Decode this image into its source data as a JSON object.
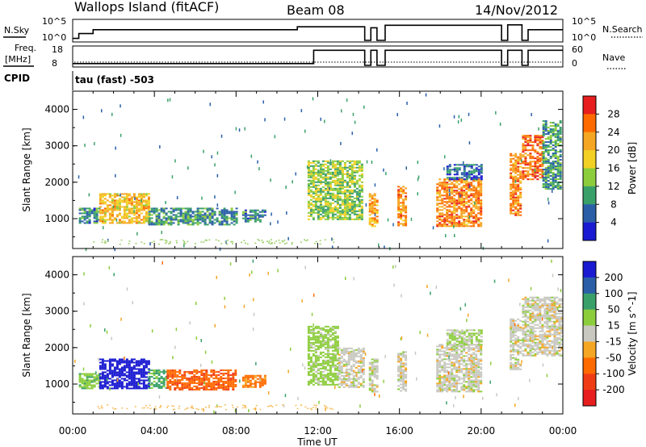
{
  "header": {
    "site": "Wallops Island (fitACF)",
    "beam": "Beam 08",
    "date": "14/Nov/2012"
  },
  "panels": {
    "nsky_label": "N.Sky",
    "nsky_ticks": [
      "10^5",
      "10^0"
    ],
    "nsearch_label": "N.Search",
    "nsearch_ticks": [
      "10^5",
      "10^0"
    ],
    "freq_label": "Freq.",
    "freq_unit": "[MHz]",
    "freq_ticks": [
      "18",
      "8"
    ],
    "nave_label": "Nave",
    "nave_ticks": [
      "60",
      "0"
    ],
    "cpid_label": "CPID",
    "cpid_value": "tau (fast) -503"
  },
  "chart_data": [
    {
      "type": "heatmap",
      "name": "power",
      "ylabel": "Slant Range [km]",
      "ylim": [
        180,
        4500
      ],
      "yticks": [
        1000,
        2000,
        3000,
        4000
      ],
      "xlabel": "Time UT",
      "xlim": [
        "00:00",
        "24:00"
      ],
      "xticks": [
        "00:00",
        "04:00",
        "08:00",
        "12:00",
        "16:00",
        "20:00",
        "00:00"
      ],
      "colorbar": {
        "label": "Power [dB]",
        "ticks": [
          "28",
          "24",
          "20",
          "16",
          "12",
          "8",
          "4"
        ],
        "colors": [
          "#e61e1e",
          "#ff6a00",
          "#f5a623",
          "#f2d024",
          "#8ccd3c",
          "#3aa06a",
          "#2a5fa8",
          "#1a1ad2"
        ]
      },
      "regions": [
        {
          "t0": 0.3,
          "t1": 1.3,
          "r0": 900,
          "r1": 1300,
          "value": 8
        },
        {
          "t0": 1.3,
          "t1": 3.7,
          "r0": 900,
          "r1": 1700,
          "value": 20
        },
        {
          "t0": 3.7,
          "t1": 8.0,
          "r0": 850,
          "r1": 1300,
          "value": 9
        },
        {
          "t0": 8.3,
          "t1": 9.4,
          "r0": 900,
          "r1": 1250,
          "value": 8
        },
        {
          "t0": 11.5,
          "t1": 14.2,
          "r0": 1000,
          "r1": 2600,
          "value": 14
        },
        {
          "t0": 14.5,
          "t1": 14.9,
          "r0": 800,
          "r1": 1700,
          "value": 22
        },
        {
          "t0": 15.9,
          "t1": 16.3,
          "r0": 800,
          "r1": 1900,
          "value": 24
        },
        {
          "t0": 17.8,
          "t1": 20.0,
          "r0": 800,
          "r1": 2100,
          "value": 24
        },
        {
          "t0": 18.3,
          "t1": 20.0,
          "r0": 2100,
          "r1": 2500,
          "value": 7
        },
        {
          "t0": 21.4,
          "t1": 21.9,
          "r0": 1100,
          "r1": 2800,
          "value": 24
        },
        {
          "t0": 22.0,
          "t1": 23.0,
          "r0": 2100,
          "r1": 3300,
          "value": 26
        },
        {
          "t0": 23.0,
          "t1": 23.9,
          "r0": 1800,
          "r1": 3700,
          "value": 10
        }
      ]
    },
    {
      "type": "heatmap",
      "name": "velocity",
      "ylabel": "Slant Range [km]",
      "ylim": [
        180,
        4500
      ],
      "yticks": [
        1000,
        2000,
        3000,
        4000
      ],
      "xlabel": "Time UT",
      "xlim": [
        "00:00",
        "24:00"
      ],
      "xticks": [
        "00:00",
        "04:00",
        "08:00",
        "12:00",
        "16:00",
        "20:00",
        "00:00"
      ],
      "colorbar": {
        "label": "Velocity [m s^-1]",
        "ticks": [
          "200",
          "100",
          "50",
          "15",
          "-15",
          "-50",
          "-100",
          "-200"
        ],
        "colors": [
          "#1a1ad2",
          "#2a5fa8",
          "#3aa06a",
          "#8ccd3c",
          "#c8c8c0",
          "#f5a623",
          "#ff6a00",
          "#f03c14",
          "#e61e1e"
        ]
      },
      "regions": [
        {
          "t0": 0.3,
          "t1": 1.3,
          "r0": 900,
          "r1": 1300,
          "value": 40
        },
        {
          "t0": 1.3,
          "t1": 3.7,
          "r0": 900,
          "r1": 1700,
          "value": 220
        },
        {
          "t0": 3.7,
          "t1": 4.6,
          "r0": 900,
          "r1": 1400,
          "value": 60
        },
        {
          "t0": 4.6,
          "t1": 8.0,
          "r0": 850,
          "r1": 1400,
          "value": -90
        },
        {
          "t0": 8.3,
          "t1": 9.4,
          "r0": 900,
          "r1": 1250,
          "value": -60
        },
        {
          "t0": 11.5,
          "t1": 13.0,
          "r0": 1000,
          "r1": 2600,
          "value": 30
        },
        {
          "t0": 13.0,
          "t1": 14.2,
          "r0": 900,
          "r1": 2000,
          "value": 0
        },
        {
          "t0": 14.5,
          "t1": 14.9,
          "r0": 800,
          "r1": 1700,
          "value": 0
        },
        {
          "t0": 15.9,
          "t1": 16.3,
          "r0": 800,
          "r1": 1900,
          "value": 0
        },
        {
          "t0": 17.8,
          "t1": 20.0,
          "r0": 800,
          "r1": 2100,
          "value": 0
        },
        {
          "t0": 18.3,
          "t1": 20.0,
          "r0": 2100,
          "r1": 2500,
          "value": 20
        },
        {
          "t0": 21.4,
          "t1": 21.9,
          "r0": 1400,
          "r1": 2800,
          "value": 0
        },
        {
          "t0": 22.0,
          "t1": 23.9,
          "r0": 1800,
          "r1": 3400,
          "value": 0
        }
      ]
    }
  ],
  "timeseries": {
    "nsky": [
      {
        "t0": 0.0,
        "t1": 0.3,
        "level": 0.1
      },
      {
        "t0": 0.3,
        "t1": 1.0,
        "level": 0.35
      },
      {
        "t0": 1.0,
        "t1": 11.0,
        "level": 0.55
      },
      {
        "t0": 11.0,
        "t1": 14.3,
        "level": 0.7
      },
      {
        "t0": 14.3,
        "t1": 14.6,
        "level": 0.0
      },
      {
        "t0": 14.6,
        "t1": 14.9,
        "level": 0.65
      },
      {
        "t0": 14.9,
        "t1": 15.3,
        "level": 0.0
      },
      {
        "t0": 15.3,
        "t1": 21.0,
        "level": 0.78
      },
      {
        "t0": 21.0,
        "t1": 21.3,
        "level": 0.0
      },
      {
        "t0": 21.3,
        "t1": 22.0,
        "level": 0.8
      },
      {
        "t0": 22.0,
        "t1": 22.3,
        "level": 0.0
      },
      {
        "t0": 22.3,
        "t1": 24.0,
        "level": 0.55
      }
    ],
    "freq": [
      {
        "t0": 0.0,
        "t1": 11.8,
        "level": 0.1
      },
      {
        "t0": 11.8,
        "t1": 14.3,
        "level": 0.85
      },
      {
        "t0": 14.3,
        "t1": 14.6,
        "level": 0.0
      },
      {
        "t0": 14.6,
        "t1": 14.9,
        "level": 0.85
      },
      {
        "t0": 14.9,
        "t1": 15.3,
        "level": 0.0
      },
      {
        "t0": 15.3,
        "t1": 21.0,
        "level": 0.85
      },
      {
        "t0": 21.0,
        "t1": 21.3,
        "level": 0.0
      },
      {
        "t0": 21.3,
        "t1": 22.0,
        "level": 0.85
      },
      {
        "t0": 22.0,
        "t1": 22.3,
        "level": 0.0
      },
      {
        "t0": 22.3,
        "t1": 24.0,
        "level": 0.85
      }
    ]
  }
}
